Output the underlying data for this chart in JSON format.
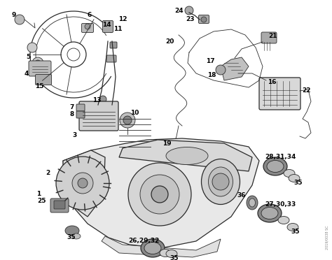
{
  "bg_color": "#f5f5f5",
  "line_color": "#2a2a2a",
  "label_color": "#000000",
  "fig_width": 4.74,
  "fig_height": 3.72,
  "dpi": 100,
  "watermark": "2019/0038 SC"
}
